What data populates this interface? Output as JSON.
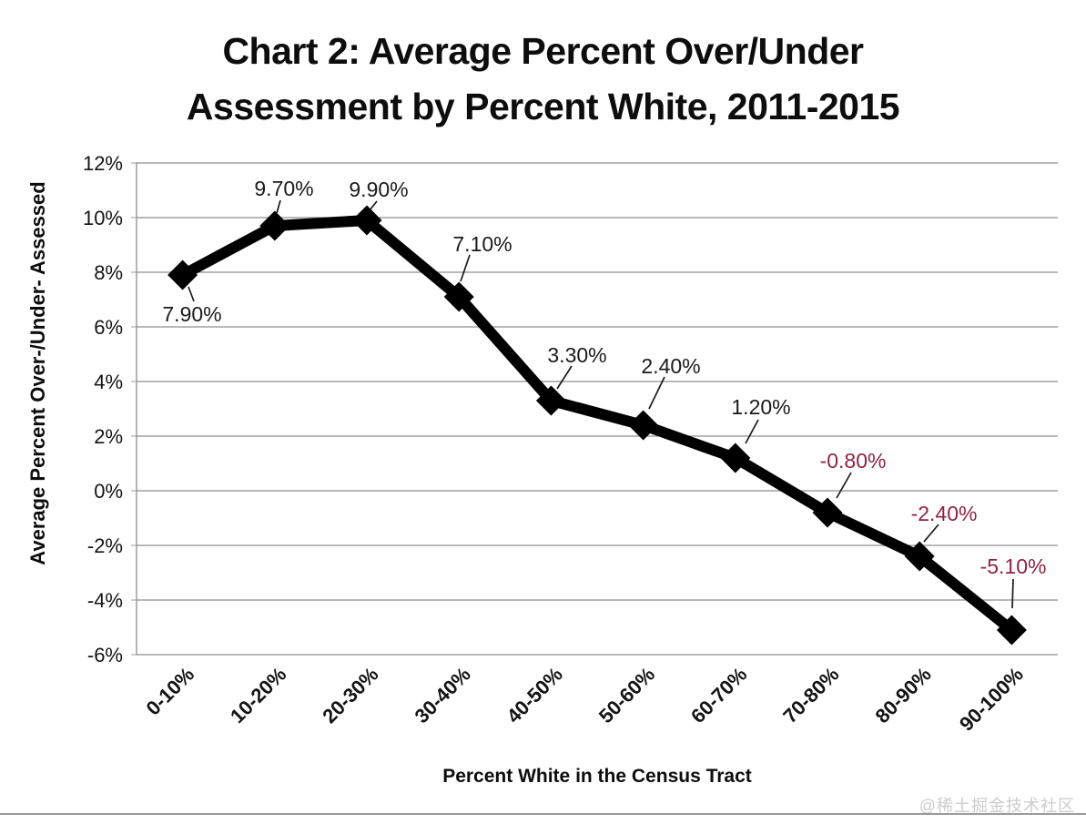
{
  "page": {
    "watermark": "@稀土掘金技术社区"
  },
  "chart_data": {
    "type": "line",
    "title": "Chart 2: Average Percent Over/Under Assessment by Percent White, 2011-2015",
    "title_lines": [
      "Chart 2: Average Percent Over/Under",
      "Assessment by Percent White, 2011-2015"
    ],
    "xlabel": "Percent White in the Census Tract",
    "ylabel": "Average Percent Over-/Under- Assessed",
    "categories": [
      "0-10%",
      "10-20%",
      "20-30%",
      "30-40%",
      "40-50%",
      "50-60%",
      "60-70%",
      "70-80%",
      "80-90%",
      "90-100%"
    ],
    "values": [
      7.9,
      9.7,
      9.9,
      7.1,
      3.3,
      2.4,
      1.2,
      -0.8,
      -2.4,
      -5.1
    ],
    "data_labels": [
      "7.90%",
      "9.70%",
      "9.90%",
      "7.10%",
      "3.30%",
      "2.40%",
      "1.20%",
      "-0.80%",
      "-2.40%",
      "-5.10%"
    ],
    "ylim": [
      -6,
      12
    ],
    "y_ticks": [
      12,
      10,
      8,
      6,
      4,
      2,
      0,
      -2,
      -4,
      -6
    ],
    "y_tick_labels": [
      "12%",
      "10%",
      "8%",
      "6%",
      "4%",
      "2%",
      "0%",
      "-2%",
      "-4%",
      "-6%"
    ],
    "grid": true,
    "legend": "none",
    "colors": {
      "line": "#000000",
      "marker": "#000000",
      "positive_label": "#1a1a1a",
      "negative_label": "#8e2440",
      "gridline": "#8e8e8e",
      "tick": "#b5b5b5",
      "leader": "#1a1a1a"
    }
  }
}
